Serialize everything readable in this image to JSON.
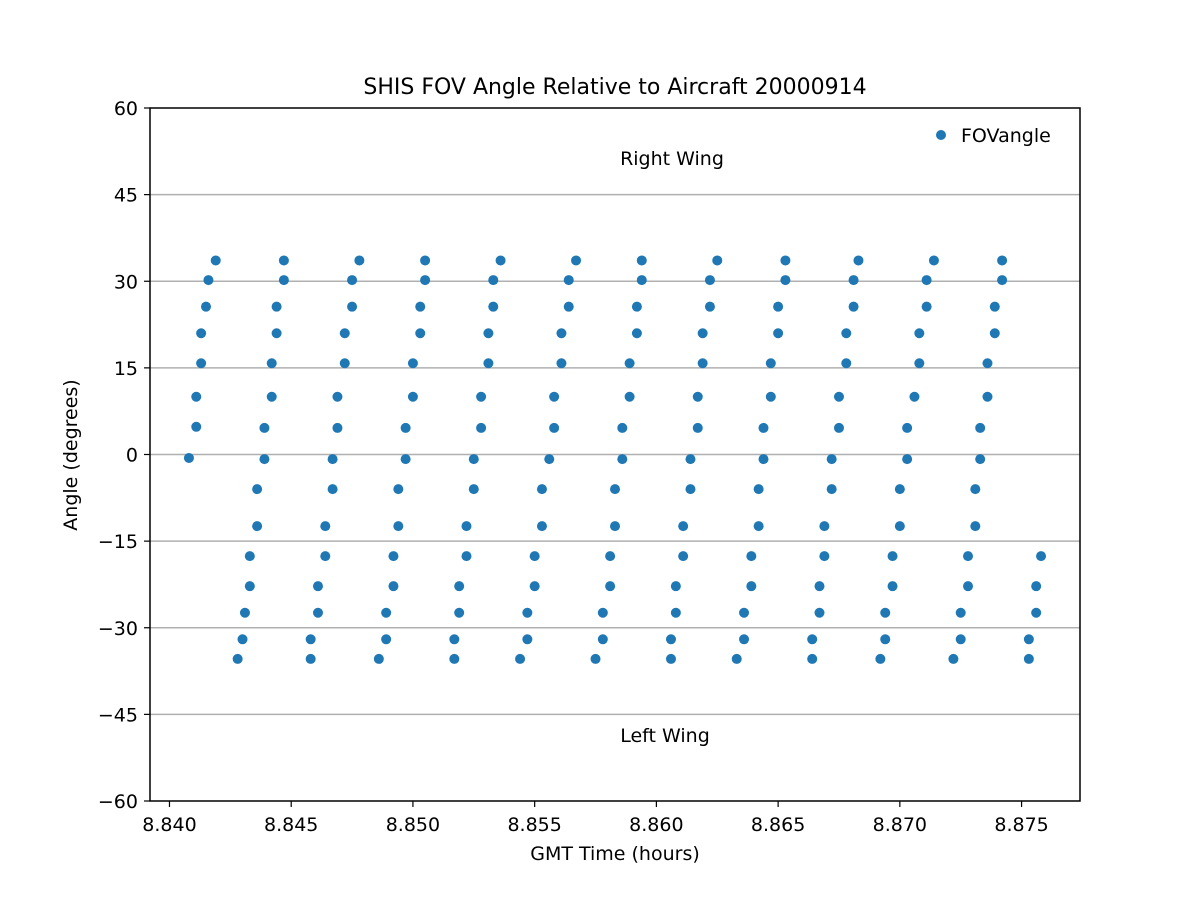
{
  "chart_data": {
    "type": "scatter",
    "title": "SHIS FOV Angle Relative to Aircraft 20000914",
    "xlabel": "GMT Time (hours)",
    "ylabel": "Angle (degrees)",
    "xlim": [
      8.8392,
      8.8774
    ],
    "ylim": [
      -60,
      60
    ],
    "xticks": [
      8.84,
      8.845,
      8.85,
      8.855,
      8.86,
      8.865,
      8.87,
      8.875
    ],
    "xtick_labels": [
      "8.840",
      "8.845",
      "8.850",
      "8.855",
      "8.860",
      "8.865",
      "8.870",
      "8.875"
    ],
    "yticks": [
      60,
      45,
      30,
      15,
      0,
      -15,
      -30,
      -45,
      -60
    ],
    "ytick_labels": [
      "60",
      "45",
      "30",
      "15",
      "0",
      "−15",
      "−30",
      "−45",
      "−60"
    ],
    "grid": "horizontal",
    "legend": {
      "position": "top-right",
      "entries": [
        "FOVangle"
      ]
    },
    "annotations": [
      {
        "text": "Right Wing",
        "x": 8.8605,
        "y": 51
      },
      {
        "text": "Left Wing",
        "x": 8.8605,
        "y": -49
      }
    ],
    "colors": {
      "series": "#1f77b4",
      "grid": "#b0b0b0",
      "axes": "#000000"
    },
    "series": [
      {
        "name": "FOVangle",
        "points": [
          {
            "x": 8.8408,
            "y": -0.6
          },
          {
            "x": 8.8411,
            "y": 4.8
          },
          {
            "x": 8.8411,
            "y": 10.0
          },
          {
            "x": 8.8413,
            "y": 15.8
          },
          {
            "x": 8.8413,
            "y": 21.0
          },
          {
            "x": 8.8415,
            "y": 25.6
          },
          {
            "x": 8.8416,
            "y": 30.2
          },
          {
            "x": 8.8419,
            "y": 33.6
          },
          {
            "x": 8.8428,
            "y": -35.4
          },
          {
            "x": 8.843,
            "y": -32.0
          },
          {
            "x": 8.8431,
            "y": -27.4
          },
          {
            "x": 8.8433,
            "y": -22.8
          },
          {
            "x": 8.8433,
            "y": -17.6
          },
          {
            "x": 8.8436,
            "y": -12.4
          },
          {
            "x": 8.8436,
            "y": -6.0
          },
          {
            "x": 8.8439,
            "y": -0.8
          },
          {
            "x": 8.8439,
            "y": 4.6
          },
          {
            "x": 8.8442,
            "y": 10.0
          },
          {
            "x": 8.8442,
            "y": 15.8
          },
          {
            "x": 8.8444,
            "y": 21.0
          },
          {
            "x": 8.8444,
            "y": 25.6
          },
          {
            "x": 8.8447,
            "y": 30.2
          },
          {
            "x": 8.8447,
            "y": 33.6
          },
          {
            "x": 8.8458,
            "y": -35.4
          },
          {
            "x": 8.8458,
            "y": -32.0
          },
          {
            "x": 8.8461,
            "y": -27.4
          },
          {
            "x": 8.8461,
            "y": -22.8
          },
          {
            "x": 8.8464,
            "y": -17.6
          },
          {
            "x": 8.8464,
            "y": -12.4
          },
          {
            "x": 8.8467,
            "y": -6.0
          },
          {
            "x": 8.8467,
            "y": -0.8
          },
          {
            "x": 8.8469,
            "y": 4.6
          },
          {
            "x": 8.8469,
            "y": 10.0
          },
          {
            "x": 8.8472,
            "y": 15.8
          },
          {
            "x": 8.8472,
            "y": 21.0
          },
          {
            "x": 8.8475,
            "y": 25.6
          },
          {
            "x": 8.8475,
            "y": 30.2
          },
          {
            "x": 8.8478,
            "y": 33.6
          },
          {
            "x": 8.8486,
            "y": -35.4
          },
          {
            "x": 8.8489,
            "y": -32.0
          },
          {
            "x": 8.8489,
            "y": -27.4
          },
          {
            "x": 8.8492,
            "y": -22.8
          },
          {
            "x": 8.8492,
            "y": -17.6
          },
          {
            "x": 8.8494,
            "y": -12.4
          },
          {
            "x": 8.8494,
            "y": -6.0
          },
          {
            "x": 8.8497,
            "y": -0.8
          },
          {
            "x": 8.8497,
            "y": 4.6
          },
          {
            "x": 8.85,
            "y": 10.0
          },
          {
            "x": 8.85,
            "y": 15.8
          },
          {
            "x": 8.8503,
            "y": 21.0
          },
          {
            "x": 8.8503,
            "y": 25.6
          },
          {
            "x": 8.8505,
            "y": 30.2
          },
          {
            "x": 8.8505,
            "y": 33.6
          },
          {
            "x": 8.8517,
            "y": -35.4
          },
          {
            "x": 8.8517,
            "y": -32.0
          },
          {
            "x": 8.8519,
            "y": -27.4
          },
          {
            "x": 8.8519,
            "y": -22.8
          },
          {
            "x": 8.8522,
            "y": -17.6
          },
          {
            "x": 8.8522,
            "y": -12.4
          },
          {
            "x": 8.8525,
            "y": -6.0
          },
          {
            "x": 8.8525,
            "y": -0.8
          },
          {
            "x": 8.8528,
            "y": 4.6
          },
          {
            "x": 8.8528,
            "y": 10.0
          },
          {
            "x": 8.8531,
            "y": 15.8
          },
          {
            "x": 8.8531,
            "y": 21.0
          },
          {
            "x": 8.8533,
            "y": 25.6
          },
          {
            "x": 8.8533,
            "y": 30.2
          },
          {
            "x": 8.8536,
            "y": 33.6
          },
          {
            "x": 8.8544,
            "y": -35.4
          },
          {
            "x": 8.8547,
            "y": -32.0
          },
          {
            "x": 8.8547,
            "y": -27.4
          },
          {
            "x": 8.855,
            "y": -22.8
          },
          {
            "x": 8.855,
            "y": -17.6
          },
          {
            "x": 8.8553,
            "y": -12.4
          },
          {
            "x": 8.8553,
            "y": -6.0
          },
          {
            "x": 8.8556,
            "y": -0.8
          },
          {
            "x": 8.8558,
            "y": 4.6
          },
          {
            "x": 8.8558,
            "y": 10.0
          },
          {
            "x": 8.8561,
            "y": 15.8
          },
          {
            "x": 8.8561,
            "y": 21.0
          },
          {
            "x": 8.8564,
            "y": 25.6
          },
          {
            "x": 8.8564,
            "y": 30.2
          },
          {
            "x": 8.8567,
            "y": 33.6
          },
          {
            "x": 8.8575,
            "y": -35.4
          },
          {
            "x": 8.8578,
            "y": -32.0
          },
          {
            "x": 8.8578,
            "y": -27.4
          },
          {
            "x": 8.8581,
            "y": -22.8
          },
          {
            "x": 8.8581,
            "y": -17.6
          },
          {
            "x": 8.8583,
            "y": -12.4
          },
          {
            "x": 8.8583,
            "y": -6.0
          },
          {
            "x": 8.8586,
            "y": -0.8
          },
          {
            "x": 8.8586,
            "y": 4.6
          },
          {
            "x": 8.8589,
            "y": 10.0
          },
          {
            "x": 8.8589,
            "y": 15.8
          },
          {
            "x": 8.8592,
            "y": 21.0
          },
          {
            "x": 8.8592,
            "y": 25.6
          },
          {
            "x": 8.8594,
            "y": 30.2
          },
          {
            "x": 8.8594,
            "y": 33.6
          },
          {
            "x": 8.8606,
            "y": -35.4
          },
          {
            "x": 8.8606,
            "y": -32.0
          },
          {
            "x": 8.8608,
            "y": -27.4
          },
          {
            "x": 8.8608,
            "y": -22.8
          },
          {
            "x": 8.8611,
            "y": -17.6
          },
          {
            "x": 8.8611,
            "y": -12.4
          },
          {
            "x": 8.8614,
            "y": -6.0
          },
          {
            "x": 8.8614,
            "y": -0.8
          },
          {
            "x": 8.8617,
            "y": 4.6
          },
          {
            "x": 8.8617,
            "y": 10.0
          },
          {
            "x": 8.8619,
            "y": 15.8
          },
          {
            "x": 8.8619,
            "y": 21.0
          },
          {
            "x": 8.8622,
            "y": 25.6
          },
          {
            "x": 8.8622,
            "y": 30.2
          },
          {
            "x": 8.8625,
            "y": 33.6
          },
          {
            "x": 8.8633,
            "y": -35.4
          },
          {
            "x": 8.8636,
            "y": -32.0
          },
          {
            "x": 8.8636,
            "y": -27.4
          },
          {
            "x": 8.8639,
            "y": -22.8
          },
          {
            "x": 8.8639,
            "y": -17.6
          },
          {
            "x": 8.8642,
            "y": -12.4
          },
          {
            "x": 8.8642,
            "y": -6.0
          },
          {
            "x": 8.8644,
            "y": -0.8
          },
          {
            "x": 8.8644,
            "y": 4.6
          },
          {
            "x": 8.8647,
            "y": 10.0
          },
          {
            "x": 8.8647,
            "y": 15.8
          },
          {
            "x": 8.865,
            "y": 21.0
          },
          {
            "x": 8.865,
            "y": 25.6
          },
          {
            "x": 8.8653,
            "y": 30.2
          },
          {
            "x": 8.8653,
            "y": 33.6
          },
          {
            "x": 8.8664,
            "y": -35.4
          },
          {
            "x": 8.8664,
            "y": -32.0
          },
          {
            "x": 8.8667,
            "y": -27.4
          },
          {
            "x": 8.8667,
            "y": -22.8
          },
          {
            "x": 8.8669,
            "y": -17.6
          },
          {
            "x": 8.8669,
            "y": -12.4
          },
          {
            "x": 8.8672,
            "y": -6.0
          },
          {
            "x": 8.8672,
            "y": -0.8
          },
          {
            "x": 8.8675,
            "y": 4.6
          },
          {
            "x": 8.8675,
            "y": 10.0
          },
          {
            "x": 8.8678,
            "y": 15.8
          },
          {
            "x": 8.8678,
            "y": 21.0
          },
          {
            "x": 8.8681,
            "y": 25.6
          },
          {
            "x": 8.8681,
            "y": 30.2
          },
          {
            "x": 8.8683,
            "y": 33.6
          },
          {
            "x": 8.8692,
            "y": -35.4
          },
          {
            "x": 8.8694,
            "y": -32.0
          },
          {
            "x": 8.8694,
            "y": -27.4
          },
          {
            "x": 8.8697,
            "y": -22.8
          },
          {
            "x": 8.8697,
            "y": -17.6
          },
          {
            "x": 8.87,
            "y": -12.4
          },
          {
            "x": 8.87,
            "y": -6.0
          },
          {
            "x": 8.8703,
            "y": -0.8
          },
          {
            "x": 8.8703,
            "y": 4.6
          },
          {
            "x": 8.8706,
            "y": 10.0
          },
          {
            "x": 8.8708,
            "y": 15.8
          },
          {
            "x": 8.8708,
            "y": 21.0
          },
          {
            "x": 8.8711,
            "y": 25.6
          },
          {
            "x": 8.8711,
            "y": 30.2
          },
          {
            "x": 8.8714,
            "y": 33.6
          },
          {
            "x": 8.8722,
            "y": -35.4
          },
          {
            "x": 8.8725,
            "y": -32.0
          },
          {
            "x": 8.8725,
            "y": -27.4
          },
          {
            "x": 8.8728,
            "y": -22.8
          },
          {
            "x": 8.8728,
            "y": -17.6
          },
          {
            "x": 8.8731,
            "y": -12.4
          },
          {
            "x": 8.8731,
            "y": -6.0
          },
          {
            "x": 8.8733,
            "y": -0.8
          },
          {
            "x": 8.8733,
            "y": 4.6
          },
          {
            "x": 8.8736,
            "y": 10.0
          },
          {
            "x": 8.8736,
            "y": 15.8
          },
          {
            "x": 8.8739,
            "y": 21.0
          },
          {
            "x": 8.8739,
            "y": 25.6
          },
          {
            "x": 8.8742,
            "y": 30.2
          },
          {
            "x": 8.8742,
            "y": 33.6
          },
          {
            "x": 8.8753,
            "y": -35.4
          },
          {
            "x": 8.8753,
            "y": -32.0
          },
          {
            "x": 8.8756,
            "y": -27.4
          },
          {
            "x": 8.8756,
            "y": -22.8
          },
          {
            "x": 8.8758,
            "y": -17.6
          }
        ]
      }
    ]
  }
}
